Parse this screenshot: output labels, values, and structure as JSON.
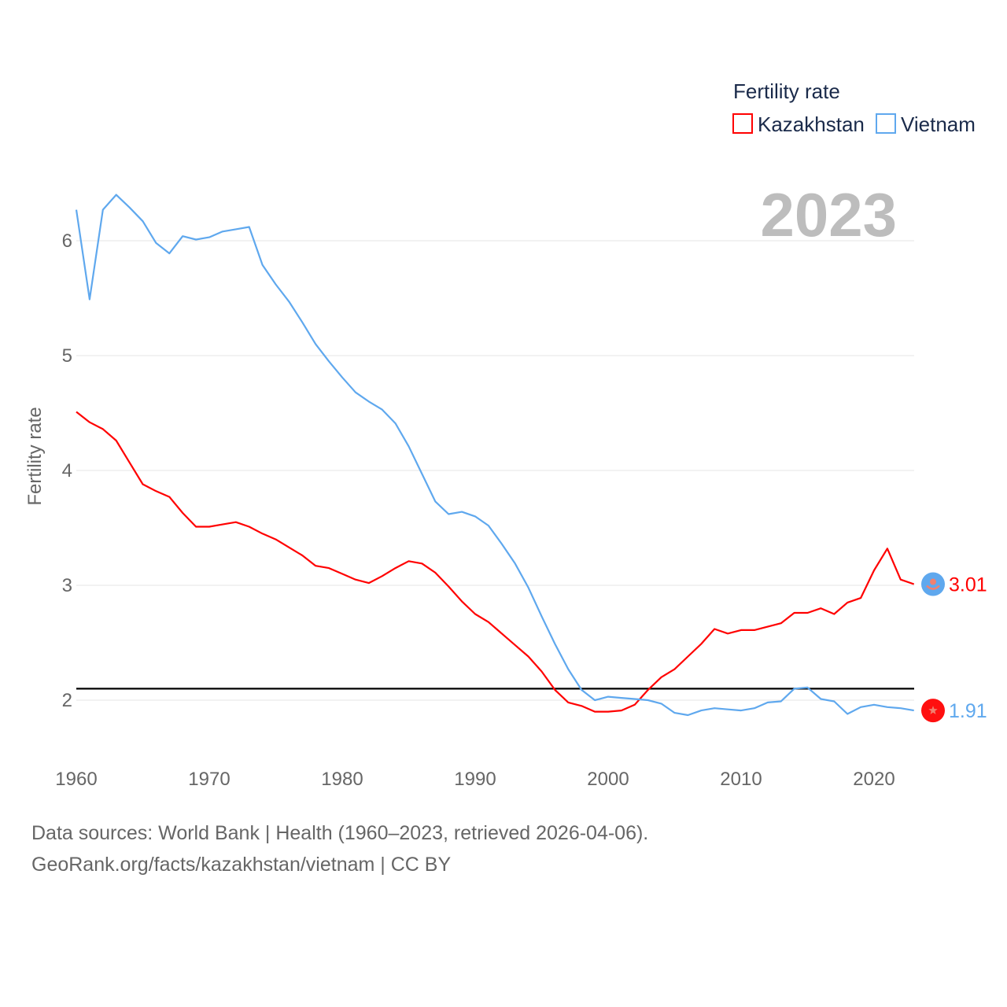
{
  "chart_data": {
    "type": "line",
    "ylabel": "Fertility rate",
    "legend_title": "Fertility rate",
    "legend_position": "top-right",
    "year_label": "2023",
    "xlim": [
      1960,
      2023
    ],
    "ylim": [
      1.55,
      6.6
    ],
    "x_ticks": [
      "1960",
      "1970",
      "1980",
      "1990",
      "2000",
      "2010",
      "2020"
    ],
    "y_ticks": [
      "2",
      "3",
      "4",
      "5",
      "6"
    ],
    "reference_line": 2.1,
    "x_start": 1960,
    "series": [
      {
        "name": "Kazakhstan",
        "color": "#ff0000",
        "end_label": "3.01",
        "flag_icon": "kazakhstan-flag-icon",
        "values": [
          4.51,
          4.42,
          4.36,
          4.26,
          4.07,
          3.88,
          3.82,
          3.77,
          3.63,
          3.51,
          3.51,
          3.53,
          3.55,
          3.51,
          3.45,
          3.4,
          3.33,
          3.26,
          3.17,
          3.15,
          3.1,
          3.05,
          3.02,
          3.08,
          3.15,
          3.21,
          3.19,
          3.11,
          2.99,
          2.86,
          2.75,
          2.68,
          2.58,
          2.48,
          2.38,
          2.25,
          2.09,
          1.98,
          1.95,
          1.9,
          1.9,
          1.91,
          1.96,
          2.09,
          2.2,
          2.27,
          2.38,
          2.49,
          2.62,
          2.58,
          2.61,
          2.61,
          2.64,
          2.67,
          2.76,
          2.76,
          2.8,
          2.75,
          2.85,
          2.89,
          3.13,
          3.32,
          3.05,
          3.01
        ]
      },
      {
        "name": "Vietnam",
        "color": "#5fa8ee",
        "end_label": "1.91",
        "flag_icon": "vietnam-flag-icon",
        "values": [
          6.27,
          5.49,
          6.27,
          6.4,
          6.29,
          6.17,
          5.98,
          5.89,
          6.04,
          6.01,
          6.03,
          6.08,
          6.1,
          6.12,
          5.79,
          5.62,
          5.47,
          5.29,
          5.1,
          4.95,
          4.81,
          4.68,
          4.6,
          4.53,
          4.41,
          4.21,
          3.97,
          3.73,
          3.62,
          3.64,
          3.6,
          3.52,
          3.36,
          3.19,
          2.98,
          2.73,
          2.49,
          2.27,
          2.09,
          2.0,
          2.03,
          2.02,
          2.01,
          2.0,
          1.97,
          1.89,
          1.87,
          1.91,
          1.93,
          1.92,
          1.91,
          1.93,
          1.98,
          1.99,
          2.1,
          2.11,
          2.01,
          1.99,
          1.88,
          1.94,
          1.96,
          1.94,
          1.93,
          1.91
        ]
      }
    ]
  },
  "footer": {
    "line1": "Data sources: World Bank | Health (1960–2023, retrieved 2026-04-06).",
    "line2": "GeoRank.org/facts/kazakhstan/vietnam | CC BY"
  }
}
